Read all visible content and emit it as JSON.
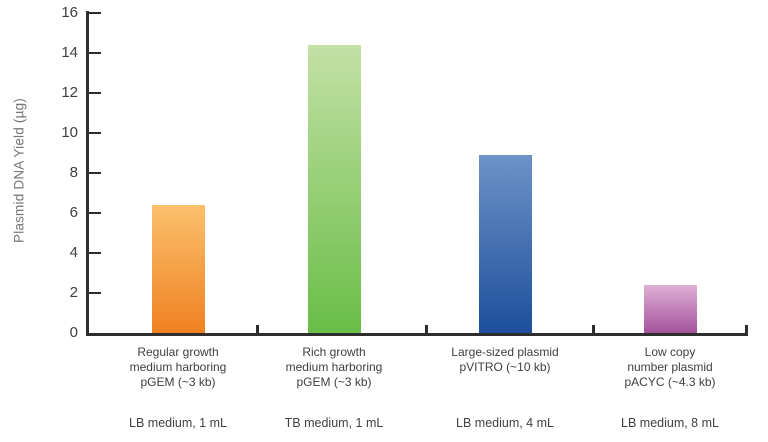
{
  "chart_data": {
    "type": "bar",
    "ylabel": "Plasmid DNA Yield (µg)",
    "ylim": [
      0,
      16
    ],
    "ytick_step": 2,
    "yticks": [
      0,
      2,
      4,
      6,
      8,
      10,
      12,
      14,
      16
    ],
    "grid": false,
    "legend": false,
    "categories": [
      {
        "label_lines": [
          "Regular growth",
          "medium harboring",
          "pGEM (~3 kb)"
        ],
        "medium": "LB medium, 1 mL",
        "value": 6.4,
        "color_top": "#FBC06C",
        "color_bottom": "#F08122",
        "series_name": "regular-growth-pgem"
      },
      {
        "label_lines": [
          "Rich growth",
          "medium harboring",
          "pGEM (~3 kb)"
        ],
        "medium": "TB medium, 1 mL",
        "value": 14.4,
        "color_top": "#C3E0A5",
        "color_bottom": "#69BE47",
        "series_name": "rich-growth-pgem"
      },
      {
        "label_lines": [
          "Large-sized plasmid",
          "pVITRO (~10 kb)"
        ],
        "medium": "LB medium, 4 mL",
        "value": 8.9,
        "color_top": "#6D93C7",
        "color_bottom": "#1D4F9C",
        "series_name": "large-plasmid-pvitro"
      },
      {
        "label_lines": [
          "Low copy",
          "number plasmid",
          "pACYC (~4.3 kb)"
        ],
        "medium": "LB medium, 8 mL",
        "value": 2.4,
        "color_top": "#DFB1D5",
        "color_bottom": "#A4529B",
        "series_name": "low-copy-pacyc"
      }
    ]
  },
  "colors": {
    "axis": "#2E2E2E",
    "tick_label": "#3F3F3F",
    "category_label": "#3F3F3F",
    "y_title": "#767676",
    "background": "#FFFFFF"
  }
}
